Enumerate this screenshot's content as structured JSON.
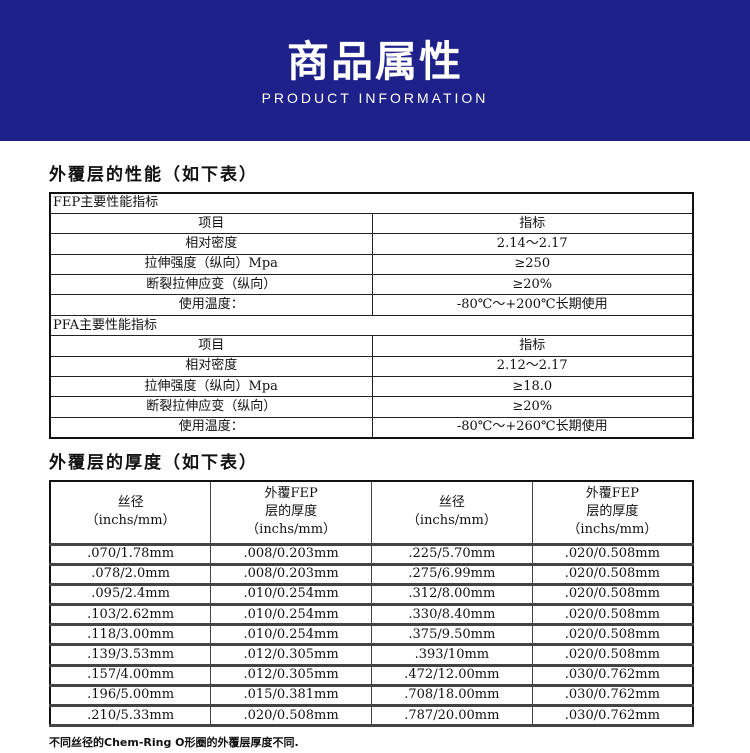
{
  "banner": {
    "title": "商品属性",
    "subtitle": "PRODUCT INFORMATION",
    "color": "#1e218a"
  },
  "section1": {
    "title": "外覆层的性能（如下表）",
    "groups": [
      {
        "title": "FEP主要性能指标",
        "header": [
          "项目",
          "指标"
        ],
        "rows": [
          [
            "相对密度",
            "2.14～2.17"
          ],
          [
            "拉伸强度（纵向）Mpa",
            "≥250"
          ],
          [
            "断裂拉伸应变（纵向）",
            "≥20%"
          ],
          [
            "使用温度：",
            "-80℃～+200℃长期使用"
          ]
        ]
      },
      {
        "title": "PFA主要性能指标",
        "header": [
          "项目",
          "指标"
        ],
        "rows": [
          [
            "相对密度",
            "2.12～2.17"
          ],
          [
            "拉伸强度（纵向）Mpa",
            "≥18.0"
          ],
          [
            "断裂拉伸应变（纵向）",
            "≥20%"
          ],
          [
            "使用温度：",
            "-80℃～+260℃长期使用"
          ]
        ]
      }
    ]
  },
  "section2": {
    "title": "外覆层的厚度（如下表）",
    "headers": [
      [
        "丝径",
        "（inchs/mm）"
      ],
      [
        "外覆FEP",
        "层的厚度",
        "（inchs/mm）"
      ],
      [
        "丝径",
        "（inchs/mm）"
      ],
      [
        "外覆FEP",
        "层的厚度",
        "（inchs/mm）"
      ]
    ],
    "rows": [
      [
        ".070/1.78mm",
        ".008/0.203mm",
        ".225/5.70mm",
        ".020/0.508mm"
      ],
      [
        ".078/2.0mm",
        ".008/0.203mm",
        ".275/6.99mm",
        ".020/0.508mm"
      ],
      [
        ".095/2.4mm",
        ".010/0.254mm",
        ".312/8.00mm",
        ".020/0.508mm"
      ],
      [
        ".103/2.62mm",
        ".010/0.254mm",
        ".330/8.40mm",
        ".020/0.508mm"
      ],
      [
        ".118/3.00mm",
        ".010/0.254mm",
        ".375/9.50mm",
        ".020/0.508mm"
      ],
      [
        ".139/3.53mm",
        ".012/0.305mm",
        ".393/10mm",
        ".020/0.508mm"
      ],
      [
        ".157/4.00mm",
        ".012/0.305mm",
        ".472/12.00mm",
        ".030/0.762mm"
      ],
      [
        ".196/5.00mm",
        ".015/0.381mm",
        ".708/18.00mm",
        ".030/0.762mm"
      ],
      [
        ".210/5.33mm",
        ".020/0.508mm",
        ".787/20.00mm",
        ".030/0.762mm"
      ]
    ]
  },
  "note": "不同丝径的Chem-Ring O形圈的外覆层厚度不同."
}
